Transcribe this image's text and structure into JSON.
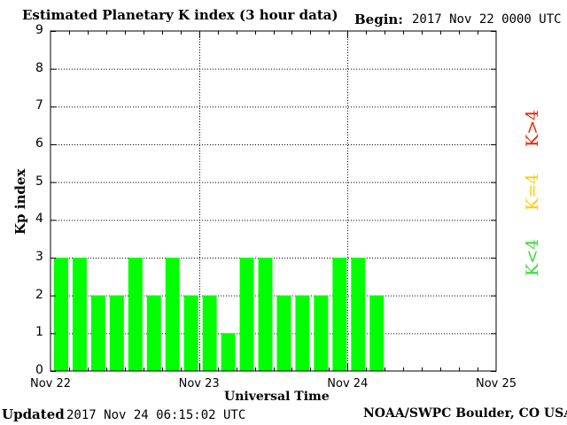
{
  "header": {
    "title": "Estimated Planetary K index (3 hour data)",
    "begin_label": "Begin:",
    "begin_value": "2017 Nov 22 0000 UTC"
  },
  "footer": {
    "updated_label": "Updated",
    "updated_value": "2017 Nov 24 06:15:02 UTC",
    "source": "NOAA/SWPC Boulder, CO USA"
  },
  "legend": {
    "low": {
      "text": "K<4",
      "color": "#33dd33"
    },
    "mid": {
      "text": "K=4",
      "color": "#ffcc00"
    },
    "high": {
      "text": "K>4",
      "color": "#ee2200"
    }
  },
  "chart_data": {
    "type": "bar",
    "title": "Estimated Planetary K index (3 hour data)",
    "xlabel": "Universal Time",
    "ylabel": "Kp index",
    "ylim": [
      0,
      9
    ],
    "yticks": [
      "0",
      "1",
      "2",
      "3",
      "4",
      "5",
      "6",
      "7",
      "8",
      "9"
    ],
    "xtick_labels": [
      "Nov 22",
      "Nov 23",
      "Nov 24",
      "Nov 25"
    ],
    "grid": true,
    "bar_color": "#00ff00",
    "categories": [
      "Nov 22 00",
      "Nov 22 03",
      "Nov 22 06",
      "Nov 22 09",
      "Nov 22 12",
      "Nov 22 15",
      "Nov 22 18",
      "Nov 22 21",
      "Nov 23 00",
      "Nov 23 03",
      "Nov 23 06",
      "Nov 23 09",
      "Nov 23 12",
      "Nov 23 15",
      "Nov 23 18",
      "Nov 23 21",
      "Nov 24 00",
      "Nov 24 03"
    ],
    "values": [
      3,
      3,
      2,
      2,
      3,
      2,
      3,
      2,
      2,
      1,
      3,
      3,
      2,
      2,
      2,
      3,
      3,
      2
    ]
  }
}
